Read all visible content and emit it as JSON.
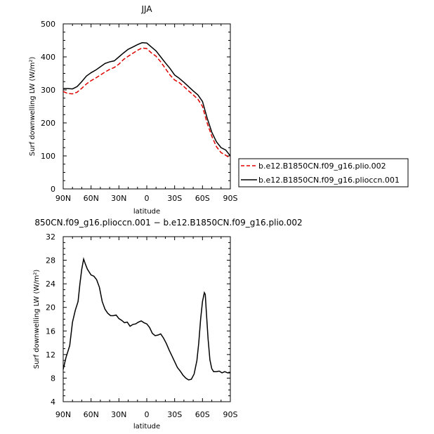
{
  "chart_data": [
    {
      "type": "line",
      "title": "JJA",
      "xlabel": "latitude",
      "ylabel": "Surf downwelling LW (W/m²)",
      "xlim": [
        90,
        -90
      ],
      "ylim": [
        0,
        500
      ],
      "xtick_labels": [
        "90N",
        "60N",
        "30N",
        "0",
        "30S",
        "60S",
        "90S"
      ],
      "ytick_labels": [
        "0",
        "100",
        "200",
        "300",
        "400",
        "500"
      ],
      "legend_position": "right",
      "series": [
        {
          "name": "b.e12.B1850CN.f09_g16.plio.002",
          "color": "#e00000",
          "dash": "dashed",
          "x": [
            90,
            85,
            80,
            75,
            70,
            65,
            60,
            55,
            50,
            45,
            40,
            35,
            30,
            25,
            20,
            15,
            10,
            5,
            0,
            -5,
            -10,
            -15,
            -20,
            -25,
            -30,
            -35,
            -40,
            -45,
            -50,
            -55,
            -60,
            -65,
            -70,
            -75,
            -80,
            -85,
            -90
          ],
          "values": [
            295,
            289,
            288,
            293,
            305,
            318,
            328,
            336,
            345,
            354,
            362,
            368,
            378,
            392,
            402,
            411,
            420,
            427,
            425,
            412,
            402,
            385,
            365,
            345,
            330,
            322,
            310,
            297,
            285,
            272,
            250,
            200,
            160,
            128,
            110,
            102,
            93
          ]
        },
        {
          "name": "b.e12.B1850CN.f09_g16.plioccn.001",
          "color": "#000000",
          "dash": "solid",
          "x": [
            90,
            85,
            80,
            75,
            70,
            65,
            60,
            55,
            50,
            45,
            40,
            35,
            30,
            25,
            20,
            15,
            10,
            5,
            0,
            -5,
            -10,
            -15,
            -20,
            -25,
            -30,
            -35,
            -40,
            -45,
            -50,
            -55,
            -60,
            -65,
            -70,
            -75,
            -80,
            -85,
            -90
          ],
          "values": [
            304,
            304,
            303,
            310,
            325,
            342,
            352,
            360,
            370,
            380,
            385,
            388,
            400,
            412,
            423,
            430,
            437,
            443,
            442,
            430,
            418,
            400,
            382,
            365,
            345,
            335,
            323,
            310,
            297,
            285,
            265,
            215,
            172,
            143,
            125,
            118,
            100
          ]
        }
      ]
    },
    {
      "type": "line",
      "title": "850CN.f09_g16.plioccn.001 − b.e12.B1850CN.f09_g16.plio.002",
      "xlabel": "latitude",
      "ylabel": "Surf downwelling LW (W/m²)",
      "xlim": [
        90,
        -90
      ],
      "ylim": [
        4,
        32
      ],
      "xtick_labels": [
        "90N",
        "60N",
        "30N",
        "0",
        "30S",
        "60S",
        "90S"
      ],
      "ytick_labels": [
        "4",
        "8",
        "12",
        "16",
        "20",
        "24",
        "28",
        "32"
      ],
      "series": [
        {
          "color": "#000000",
          "dash": "solid",
          "x": [
            90,
            87,
            83,
            80,
            77,
            74,
            72,
            70,
            68,
            66,
            64,
            62,
            60,
            57,
            54,
            51,
            48,
            45,
            42,
            39,
            36,
            33,
            30,
            27,
            24,
            21,
            18,
            15,
            12,
            9,
            6,
            3,
            0,
            -3,
            -6,
            -9,
            -12,
            -15,
            -18,
            -21,
            -24,
            -27,
            -30,
            -33,
            -36,
            -39,
            -42,
            -45,
            -48,
            -51,
            -54,
            -56,
            -58,
            -60,
            -62,
            -63,
            -64,
            -66,
            -68,
            -70,
            -72,
            -75,
            -78,
            -81,
            -84,
            -87,
            -90
          ],
          "values": [
            9.5,
            11.5,
            13.5,
            17.5,
            19.5,
            21,
            24,
            26.5,
            28.2,
            27.3,
            26.5,
            26,
            25.5,
            25.3,
            24.7,
            23.4,
            21,
            19.7,
            19,
            18.6,
            18.6,
            18.7,
            18.1,
            17.8,
            17.4,
            17.5,
            16.8,
            17.1,
            17.2,
            17.5,
            17.7,
            17.4,
            17.2,
            16.6,
            15.6,
            15.2,
            15.3,
            15.5,
            14.8,
            13.9,
            12.8,
            11.8,
            10.8,
            9.8,
            9.2,
            8.5,
            8,
            7.7,
            7.8,
            8.7,
            11,
            14,
            18,
            21,
            22.5,
            22.2,
            19.6,
            14.7,
            11.1,
            9.6,
            9.1,
            9.1,
            9.2,
            8.9,
            9.1,
            8.9,
            8.9
          ]
        }
      ]
    }
  ]
}
